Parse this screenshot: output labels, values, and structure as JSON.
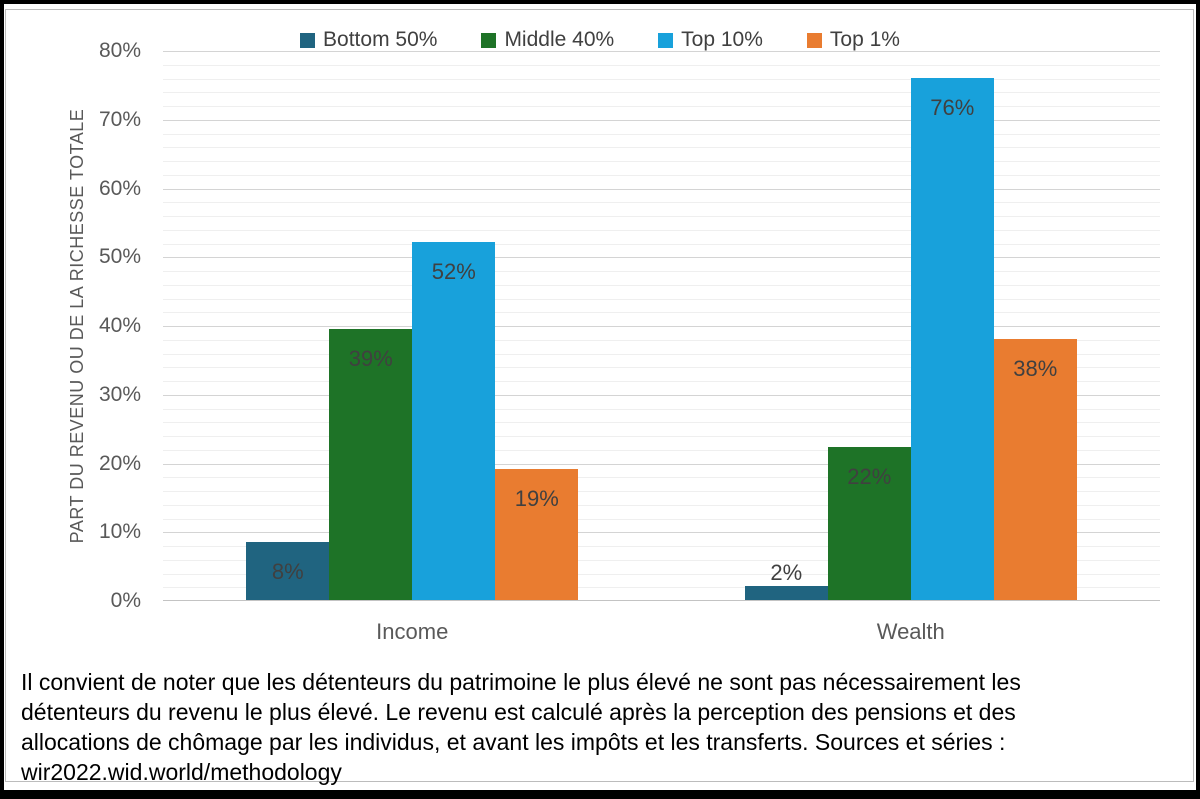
{
  "chart_data": {
    "type": "bar",
    "title": "",
    "categories": [
      "Income",
      "Wealth"
    ],
    "series": [
      {
        "name": "Bottom 50%",
        "color": "#206480",
        "values": [
          8.4,
          2
        ],
        "labels": [
          "8%",
          "2%"
        ]
      },
      {
        "name": "Middle 40%",
        "color": "#1E7327",
        "values": [
          39.4,
          22.3
        ],
        "labels": [
          "39%",
          "22%"
        ]
      },
      {
        "name": "Top 10%",
        "color": "#18A1DB",
        "values": [
          52.1,
          75.9
        ],
        "labels": [
          "52%",
          "76%"
        ]
      },
      {
        "name": "Top 1%",
        "color": "#E97C30",
        "values": [
          19.1,
          37.9
        ],
        "labels": [
          "19%",
          "38%"
        ]
      }
    ],
    "xlabel": "",
    "ylabel": "PART DU REVENU OU DE LA RICHESSE TOTALE",
    "ylim": [
      0,
      80
    ],
    "y_ticks": [
      "0%",
      "10%",
      "20%",
      "30%",
      "40%",
      "50%",
      "60%",
      "70%",
      "80%"
    ],
    "major_step": 10,
    "minor_step": 2,
    "grid": "major and minor horizontal gridlines",
    "legend_position": "top",
    "data_label_position": "inside end (outside end when bar too small)"
  },
  "caption": {
    "lines": [
      "Il convient de noter que les détenteurs du patrimoine le plus élevé ne sont pas nécessairement les",
      "détenteurs du revenu le plus élevé. Le revenu est calculé après la perception des pensions et des",
      "allocations de chômage par les individus, et avant les impôts et les transferts. Sources et séries :",
      "wir2022.wid.world/methodology"
    ]
  },
  "colors": {
    "background": "#ffffff",
    "outer_border": "#000000",
    "chart_frame": "#bcbcbc",
    "major_gridline": "#d4d4d4",
    "minor_gridline": "#efefef",
    "axis_text": "#595959",
    "data_label_text": "#404040",
    "caption_text": "#000000"
  }
}
